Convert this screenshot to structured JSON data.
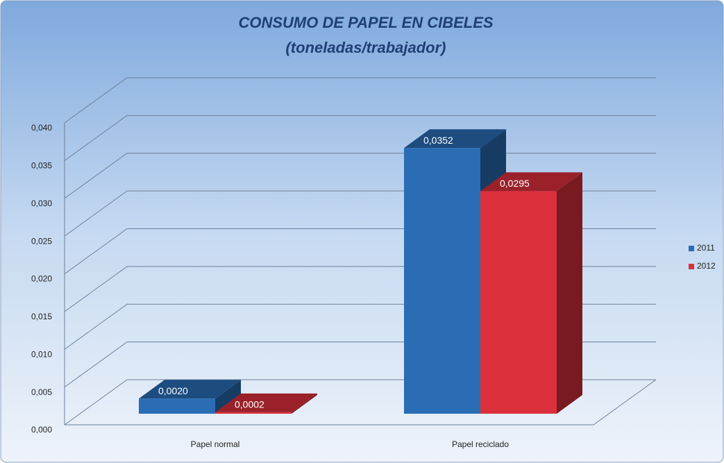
{
  "chart_data": {
    "type": "bar3d",
    "title": "CONSUMO DE PAPEL EN CIBELES",
    "subtitle": "(toneladas/trabajador)",
    "categories": [
      "Papel normal",
      "Papel reciclado"
    ],
    "series": [
      {
        "name": "2011",
        "color": "#2a6db5",
        "values": [
          0.002,
          0.0352
        ],
        "value_labels": [
          "0,0020",
          "0,0352"
        ]
      },
      {
        "name": "2012",
        "color": "#dc2f3c",
        "values": [
          0.0002,
          0.0295
        ],
        "value_labels": [
          "0,0002",
          "0,0295"
        ]
      }
    ],
    "ylim": [
      0,
      0.04
    ],
    "yticks": [
      {
        "value": 0,
        "label": "0,000"
      },
      {
        "value": 0.005,
        "label": "0,005"
      },
      {
        "value": 0.01,
        "label": "0,010"
      },
      {
        "value": 0.015,
        "label": "0,015"
      },
      {
        "value": 0.02,
        "label": "0,020"
      },
      {
        "value": 0.025,
        "label": "0,025"
      },
      {
        "value": 0.03,
        "label": "0,030"
      },
      {
        "value": 0.035,
        "label": "0,035"
      },
      {
        "value": 0.04,
        "label": "0,040"
      }
    ],
    "grid": true,
    "legend": "right"
  }
}
